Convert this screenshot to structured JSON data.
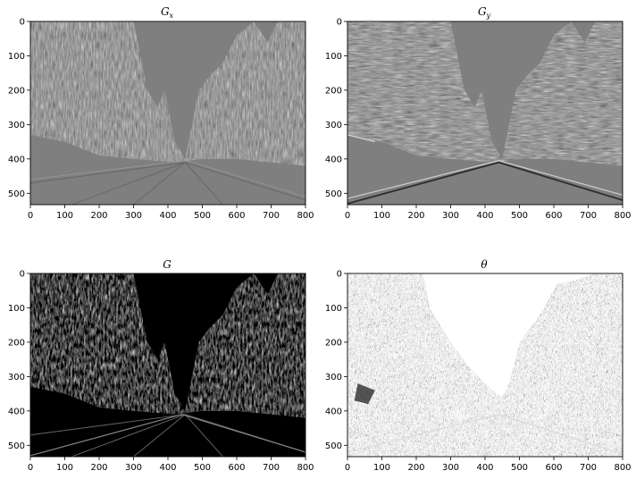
{
  "figure": {
    "panels": [
      {
        "key": "gx",
        "title_base": "G",
        "title_sub": "x",
        "style": "emboss-gray",
        "x_ticks": [
          "0",
          "100",
          "200",
          "300",
          "400",
          "500",
          "600",
          "700",
          "800"
        ],
        "y_ticks": [
          "0",
          "100",
          "200",
          "300",
          "400",
          "500"
        ]
      },
      {
        "key": "gy",
        "title_base": "G",
        "title_sub": "y",
        "style": "emboss-gray-horizontal",
        "x_ticks": [
          "0",
          "100",
          "200",
          "300",
          "400",
          "500",
          "600",
          "700",
          "800"
        ],
        "y_ticks": [
          "0",
          "100",
          "200",
          "300",
          "400",
          "500"
        ]
      },
      {
        "key": "g",
        "title_base": "G",
        "title_sub": "",
        "style": "edge-magnitude-dark",
        "x_ticks": [
          "0",
          "100",
          "200",
          "300",
          "400",
          "500",
          "600",
          "700",
          "800"
        ],
        "y_ticks": [
          "0",
          "100",
          "200",
          "300",
          "400",
          "500"
        ]
      },
      {
        "key": "theta",
        "title_base": "θ",
        "title_sub": "",
        "style": "orientation-noise",
        "x_ticks": [
          "0",
          "100",
          "200",
          "300",
          "400",
          "500",
          "600",
          "700",
          "800"
        ],
        "y_ticks": [
          "0",
          "100",
          "200",
          "300",
          "400",
          "500"
        ]
      }
    ],
    "image_extent": {
      "width": 800,
      "height": 533
    },
    "colors": {
      "mid_gray": "#7f7f7f",
      "dark": "#000000",
      "light": "#ffffff"
    }
  }
}
